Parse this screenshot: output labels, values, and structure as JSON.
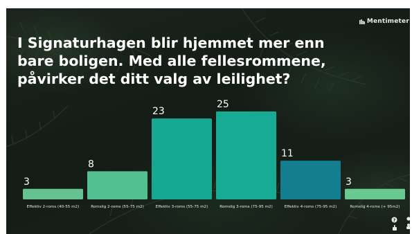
{
  "brand": {
    "name": "Mentimeter"
  },
  "question": "I Signaturhagen blir hjemmet mer enn bare boligen. Med alle fellesrommene, påvirker det ditt valg av leilighet?",
  "colors": {
    "background": "#18211a",
    "text": "#ffffff",
    "light_green": "#6fcf97",
    "teal": "#17a58f",
    "dark_teal": "#177d8c"
  },
  "chart_data": {
    "type": "bar",
    "categories": [
      "Effektiv 2-roms (40-55 m2)",
      "Romslig 2-roms (55-75 m2)",
      "Effektiv 3-roms (55-75 m2)",
      "Romslig 3-roms (75-95 m2)",
      "Effektiv 4-roms (75-95 m2)",
      "Romslig 4-roms (+ 95m2)"
    ],
    "values": [
      3,
      8,
      23,
      25,
      11,
      3
    ],
    "bar_colors": [
      "#66c391",
      "#54bf91",
      "#16a892",
      "#17ab95",
      "#137f8e",
      "#69c98f"
    ],
    "ylim": [
      0,
      25
    ]
  },
  "footer": {
    "icons": [
      "question-mark-icon",
      "hand-icon",
      "users-icon"
    ]
  }
}
